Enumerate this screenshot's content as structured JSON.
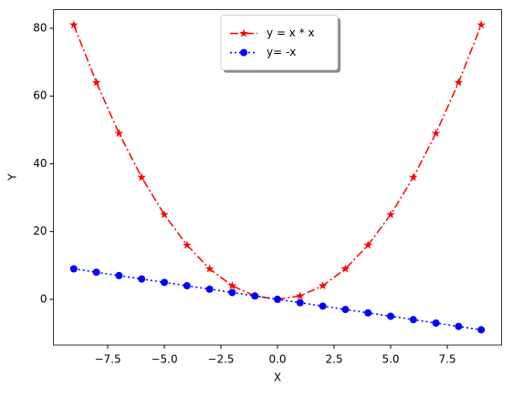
{
  "chart_data": {
    "type": "line",
    "x_label": "X",
    "y_label": "Y",
    "x": [
      -9,
      -8,
      -7,
      -6,
      -5,
      -4,
      -3,
      -2,
      -1,
      0,
      1,
      2,
      3,
      4,
      5,
      6,
      7,
      8,
      9
    ],
    "series": [
      {
        "name": "y = x * x",
        "color": "#ff0000",
        "linestyle": "dashdot",
        "marker": "star",
        "values": [
          81,
          64,
          49,
          36,
          25,
          16,
          9,
          4,
          1,
          0,
          1,
          4,
          9,
          16,
          25,
          36,
          49,
          64,
          81
        ]
      },
      {
        "name": "y= -x",
        "color": "#0000ff",
        "linestyle": "dotted",
        "marker": "circle",
        "values": [
          9,
          8,
          7,
          6,
          5,
          4,
          3,
          2,
          1,
          0,
          -1,
          -2,
          -3,
          -4,
          -5,
          -6,
          -7,
          -8,
          -9
        ]
      }
    ],
    "xlim": [
      -9.9,
      9.9
    ],
    "ylim": [
      -13.5,
      85.5
    ],
    "xticks": [
      {
        "value": -7.5,
        "label": "−7.5"
      },
      {
        "value": -5,
        "label": "−5.0"
      },
      {
        "value": -2.5,
        "label": "−2.5"
      },
      {
        "value": 0,
        "label": "0.0"
      },
      2.5,
      {
        "value": 5,
        "label": "5.0"
      },
      7.5
    ],
    "yticks": [
      0,
      20,
      40,
      60,
      80
    ],
    "legend": "upper center"
  }
}
